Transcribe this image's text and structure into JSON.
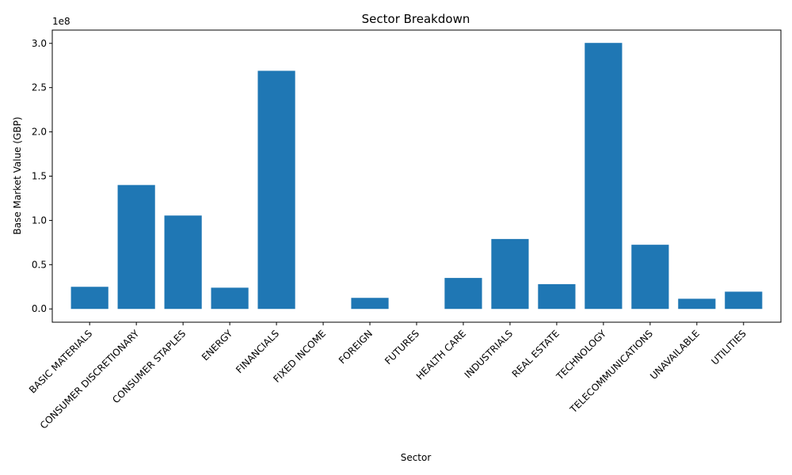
{
  "chart_data": {
    "type": "bar",
    "title": "Sector Breakdown",
    "xlabel": "Sector",
    "ylabel": "Base Market Value (GBP)",
    "y_multiplier_label": "1e8",
    "ylim": [
      -15000000,
      315000000
    ],
    "yticks": [
      0,
      50000000,
      100000000,
      150000000,
      200000000,
      250000000,
      300000000
    ],
    "ytick_labels": [
      "0.0",
      "0.5",
      "1.0",
      "1.5",
      "2.0",
      "2.5",
      "3.0"
    ],
    "grid": false,
    "bar_color": "#1f77b4",
    "categories": [
      "BASIC MATERIALS",
      "CONSUMER DISCRETIONARY",
      "CONSUMER STAPLES",
      "ENERGY",
      "FINANCIALS",
      "FIXED INCOME",
      "FOREIGN",
      "FUTURES",
      "HEALTH CARE",
      "INDUSTRIALS",
      "REAL ESTATE",
      "TECHNOLOGY",
      "TELECOMMUNICATIONS",
      "UNAVAILABLE",
      "UTILITIES"
    ],
    "values": [
      25000000,
      140000000,
      105500000,
      24000000,
      269000000,
      0,
      12500000,
      0,
      35000000,
      79000000,
      28000000,
      300500000,
      72500000,
      11500000,
      19500000
    ]
  }
}
